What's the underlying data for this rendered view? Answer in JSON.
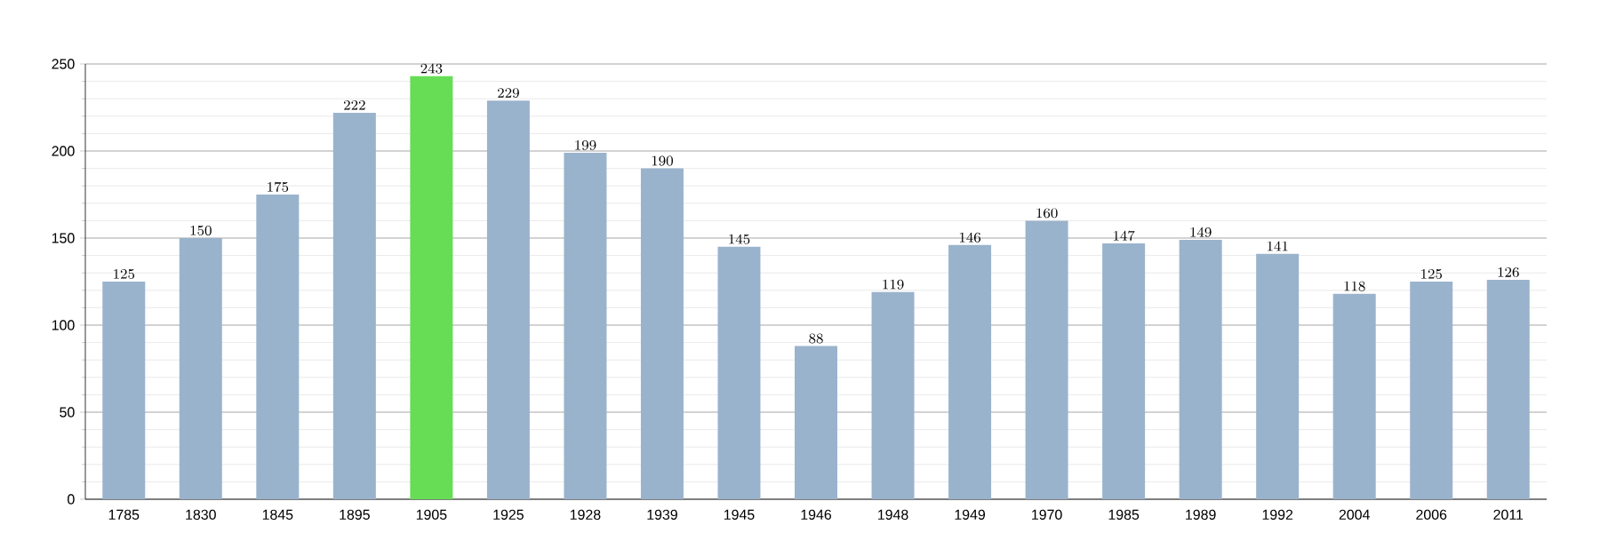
{
  "chart_data": {
    "type": "bar",
    "categories": [
      "1785",
      "1830",
      "1845",
      "1895",
      "1905",
      "1925",
      "1928",
      "1939",
      "1945",
      "1946",
      "1948",
      "1949",
      "1970",
      "1985",
      "1989",
      "1992",
      "2004",
      "2006",
      "2011"
    ],
    "values": [
      125,
      150,
      175,
      222,
      243,
      229,
      199,
      190,
      145,
      88,
      119,
      146,
      160,
      147,
      149,
      141,
      118,
      125,
      126
    ],
    "colors": [
      "#9ab3cc",
      "#9ab3cc",
      "#9ab3cc",
      "#9ab3cc",
      "#66dd55",
      "#9ab3cc",
      "#9ab3cc",
      "#9ab3cc",
      "#9ab3cc",
      "#9ab3cc",
      "#9ab3cc",
      "#9ab3cc",
      "#9ab3cc",
      "#9ab3cc",
      "#9ab3cc",
      "#9ab3cc",
      "#9ab3cc",
      "#9ab3cc",
      "#9ab3cc"
    ],
    "ylim": [
      0,
      250
    ],
    "yticks": [
      0,
      50,
      100,
      150,
      200,
      250
    ],
    "grid": "y",
    "data_labels": true
  }
}
